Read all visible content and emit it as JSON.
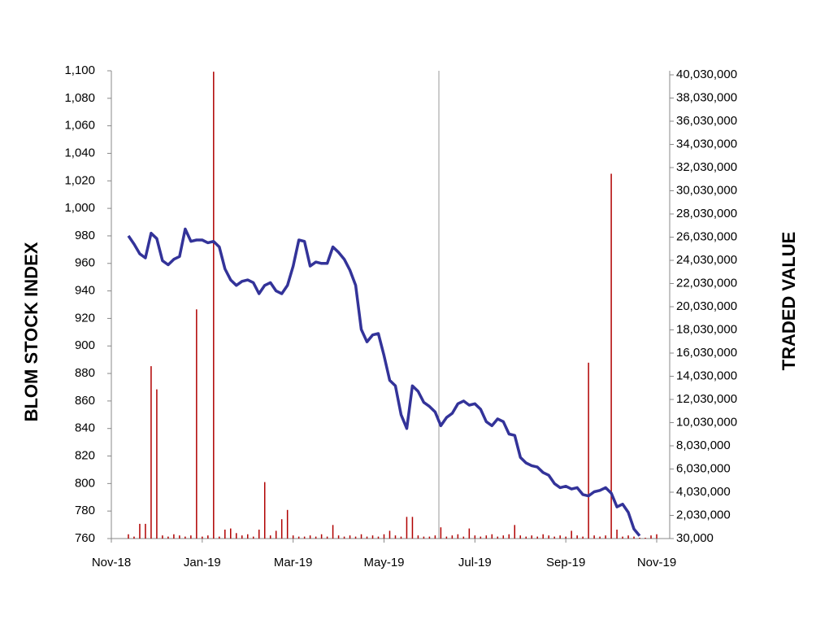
{
  "chart_data": {
    "type": "line-bar",
    "y_label": "BLOM STOCK INDEX",
    "y2_label": "TRADED VALUE",
    "categories": [
      "Nov-18",
      null,
      null,
      null,
      null,
      null,
      null,
      null,
      null,
      null,
      null,
      null,
      null,
      null,
      null,
      null,
      "Jan-19",
      null,
      null,
      null,
      null,
      null,
      null,
      null,
      null,
      null,
      null,
      null,
      null,
      null,
      null,
      null,
      "Mar-19",
      null,
      null,
      null,
      null,
      null,
      null,
      null,
      null,
      null,
      null,
      null,
      null,
      null,
      null,
      null,
      "May-19",
      null,
      null,
      null,
      null,
      null,
      null,
      null,
      null,
      null,
      null,
      null,
      null,
      null,
      null,
      null,
      "Jul-19",
      null,
      null,
      null,
      null,
      null,
      null,
      null,
      null,
      null,
      null,
      null,
      null,
      null,
      null,
      null,
      "Sep-19",
      null,
      null,
      null,
      null,
      null,
      null,
      null,
      null,
      null,
      null,
      null,
      null,
      null,
      null,
      null,
      "Nov-19"
    ],
    "series": [
      {
        "name": "BLOM STOCK INDEX",
        "kind": "line",
        "color": "#333399",
        "values": [
          null,
          null,
          null,
          980,
          974,
          967,
          964,
          982,
          978,
          962,
          959,
          963,
          965,
          985,
          976,
          977,
          977,
          975,
          976,
          972,
          956,
          948,
          944,
          947,
          948,
          946,
          938,
          944,
          946,
          940,
          938,
          944,
          958,
          977,
          976,
          958,
          961,
          960,
          960,
          972,
          968,
          963,
          955,
          944,
          912,
          903,
          908,
          909,
          893,
          875,
          871,
          850,
          840,
          871,
          867,
          859,
          856,
          852,
          842,
          848,
          851,
          858,
          860,
          857,
          858,
          854,
          845,
          842,
          847,
          845,
          836,
          835,
          819,
          815,
          813,
          812,
          808,
          806,
          800,
          797,
          798,
          796,
          797,
          792,
          791,
          794,
          795,
          797,
          793,
          783,
          785,
          779,
          767,
          762,
          null,
          null,
          null
        ]
      },
      {
        "name": "TRADED VALUE",
        "kind": "bar",
        "axis": "y2",
        "color": "#b00000",
        "values": [
          null,
          null,
          null,
          400000,
          200000,
          1300000,
          1300000,
          14900000,
          12900000,
          300000,
          200000,
          400000,
          300000,
          200000,
          300000,
          19800000,
          200000,
          300000,
          40300000,
          200000,
          800000,
          900000,
          500000,
          300000,
          400000,
          200000,
          800000,
          4900000,
          300000,
          700000,
          1700000,
          2500000,
          300000,
          200000,
          200000,
          300000,
          200000,
          400000,
          200000,
          1200000,
          300000,
          200000,
          300000,
          200000,
          400000,
          200000,
          300000,
          200000,
          400000,
          700000,
          300000,
          200000,
          1900000,
          1900000,
          300000,
          200000,
          200000,
          300000,
          1000000,
          200000,
          300000,
          400000,
          200000,
          900000,
          300000,
          200000,
          300000,
          400000,
          200000,
          300000,
          400000,
          1200000,
          300000,
          200000,
          300000,
          200000,
          400000,
          300000,
          200000,
          300000,
          200000,
          700000,
          300000,
          200000,
          15200000,
          300000,
          200000,
          300000,
          31500000,
          800000,
          200000,
          300000,
          200000,
          100000,
          100000,
          300000,
          400000
        ]
      }
    ],
    "ylim": [
      760,
      1100
    ],
    "yticks": [
      760,
      780,
      800,
      820,
      840,
      860,
      880,
      900,
      920,
      940,
      960,
      980,
      {
        "value": 1000,
        "label": "1,000"
      },
      {
        "value": 1020,
        "label": "1,020"
      },
      {
        "value": 1040,
        "label": "1,040"
      },
      {
        "value": 1060,
        "label": "1,060"
      },
      {
        "value": 1080,
        "label": "1,080"
      },
      {
        "value": 1100,
        "label": "1,100"
      }
    ],
    "y2lim": [
      30000,
      40380000
    ],
    "y2ticks": [
      {
        "value": 30000,
        "label": "30,000"
      },
      {
        "value": 2030000,
        "label": "2,030,000"
      },
      {
        "value": 4030000,
        "label": "4,030,000"
      },
      {
        "value": 6030000,
        "label": "6,030,000"
      },
      {
        "value": 8030000,
        "label": "8,030,000"
      },
      {
        "value": 10030000,
        "label": "10,030,000"
      },
      {
        "value": 12030000,
        "label": "12,030,000"
      },
      {
        "value": 14030000,
        "label": "14,030,000"
      },
      {
        "value": 16030000,
        "label": "16,030,000"
      },
      {
        "value": 18030000,
        "label": "18,030,000"
      },
      {
        "value": 20030000,
        "label": "20,030,000"
      },
      {
        "value": 22030000,
        "label": "22,030,000"
      },
      {
        "value": 24030000,
        "label": "24,030,000"
      },
      {
        "value": 26030000,
        "label": "26,030,000"
      },
      {
        "value": 28030000,
        "label": "28,030,000"
      },
      {
        "value": 30030000,
        "label": "30,030,000"
      },
      {
        "value": 32030000,
        "label": "32,030,000"
      },
      {
        "value": 34030000,
        "label": "34,030,000"
      },
      {
        "value": 36030000,
        "label": "36,030,000"
      },
      {
        "value": 38030000,
        "label": "38,030,000"
      },
      {
        "value": 40030000,
        "label": "40,030,000"
      }
    ],
    "y_label_color": "#333399",
    "y2_label_color": "#993300"
  }
}
